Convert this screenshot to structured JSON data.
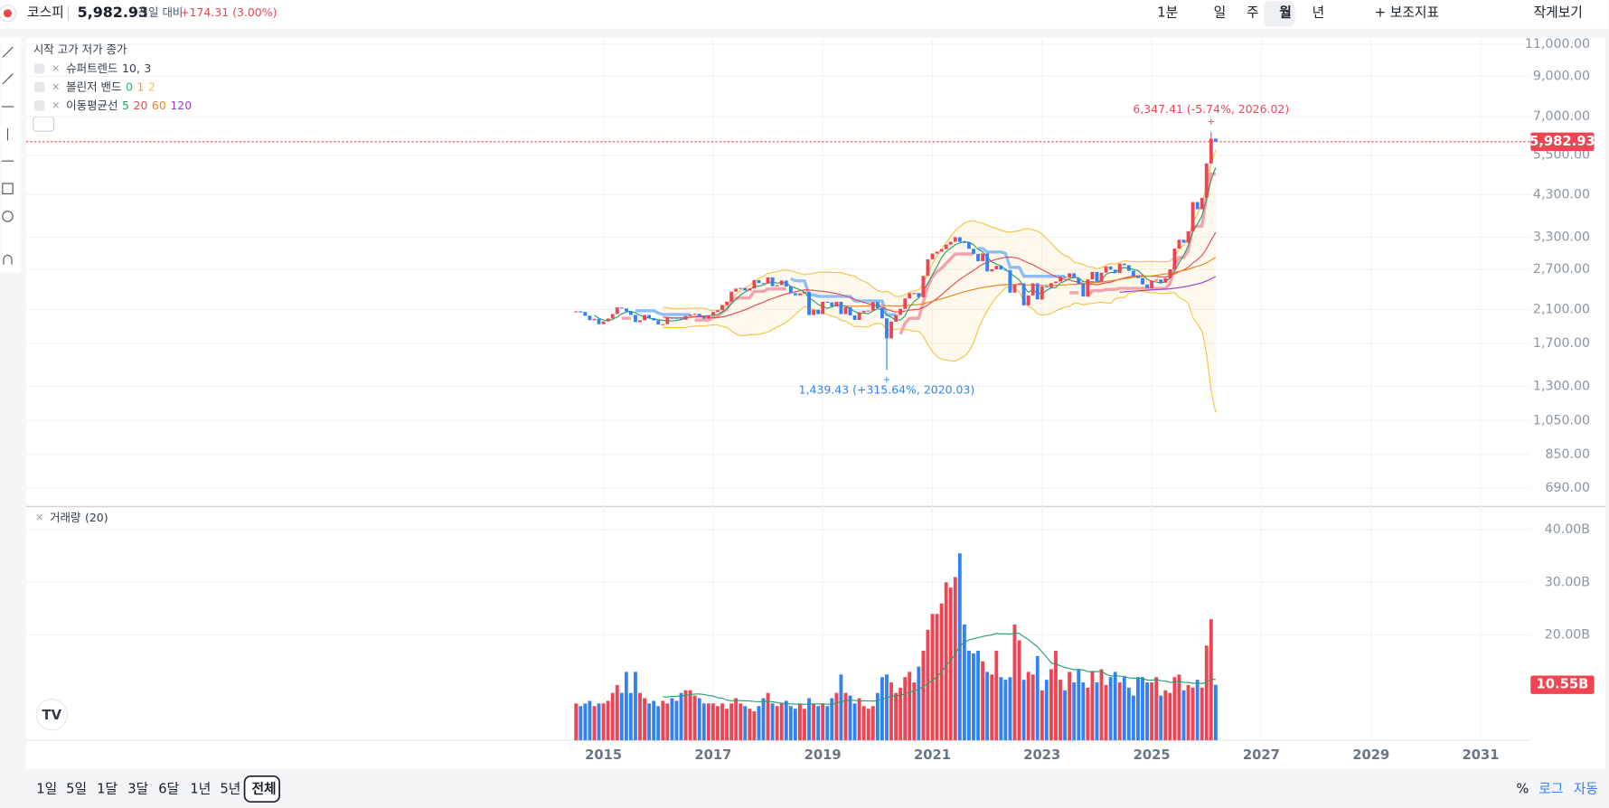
{
  "header": {
    "name": "코스피",
    "price": "5,982.93",
    "change_label": "전일 대비",
    "change": "+174.31 (3.00%)"
  },
  "toolbar": [
    "1분",
    "일",
    "주",
    "월",
    "년",
    "보조지표",
    "작게보기"
  ],
  "ranges": [
    "1일",
    "5일",
    "1달",
    "3달",
    "6달",
    "1년",
    "5년",
    "전체"
  ],
  "scale_options": [
    "%",
    "로그",
    "자동"
  ],
  "chart_data": {
    "type": "candlestick",
    "ohlc_header": "시작 고가 저가 종가",
    "x": [
      "2014.07",
      "2014.08",
      "2014.09",
      "2014.10",
      "2014.11",
      "2014.12",
      "2015.01",
      "2015.02",
      "2015.03",
      "2015.04",
      "2015.05",
      "2015.06",
      "2015.07",
      "2015.08",
      "2015.09",
      "2015.10",
      "2015.11",
      "2015.12",
      "2016.01",
      "2016.02",
      "2016.03",
      "2016.04",
      "2016.05",
      "2016.06",
      "2016.07",
      "2016.08",
      "2016.09",
      "2016.10",
      "2016.11",
      "2016.12",
      "2017.01",
      "2017.02",
      "2017.03",
      "2017.04",
      "2017.05",
      "2017.06",
      "2017.07",
      "2017.08",
      "2017.09",
      "2017.10",
      "2017.11",
      "2017.12",
      "2018.01",
      "2018.02",
      "2018.03",
      "2018.04",
      "2018.05",
      "2018.06",
      "2018.07",
      "2018.08",
      "2018.09",
      "2018.10",
      "2018.11",
      "2018.12",
      "2019.01",
      "2019.02",
      "2019.03",
      "2019.04",
      "2019.05",
      "2019.06",
      "2019.07",
      "2019.08",
      "2019.09",
      "2019.10",
      "2019.11",
      "2019.12",
      "2020.01",
      "2020.02",
      "2020.03",
      "2020.04",
      "2020.05",
      "2020.06",
      "2020.07",
      "2020.08",
      "2020.09",
      "2020.10",
      "2020.11",
      "2020.12",
      "2021.01",
      "2021.02",
      "2021.03",
      "2021.04",
      "2021.05",
      "2021.06",
      "2021.07",
      "2021.08",
      "2021.09",
      "2021.10",
      "2021.11",
      "2021.12",
      "2022.01",
      "2022.02",
      "2022.03",
      "2022.04",
      "2022.05",
      "2022.06",
      "2022.07",
      "2022.08",
      "2022.09",
      "2022.10",
      "2022.11",
      "2022.12",
      "2023.01",
      "2023.02",
      "2023.03",
      "2023.04",
      "2023.05",
      "2023.06",
      "2023.07",
      "2023.08",
      "2023.09",
      "2023.10",
      "2023.11",
      "2023.12",
      "2024.01",
      "2024.02",
      "2024.03",
      "2024.04",
      "2024.05",
      "2024.06",
      "2024.07",
      "2024.08",
      "2024.09",
      "2024.10",
      "2024.11",
      "2024.12",
      "2025.01",
      "2025.02",
      "2025.03",
      "2025.04",
      "2025.05",
      "2025.06",
      "2025.07",
      "2025.08",
      "2025.09",
      "2025.10",
      "2025.11",
      "2025.12",
      "2026.01",
      "2026.02",
      "2026.03"
    ],
    "close": [
      2076,
      2068,
      2020,
      1964,
      1981,
      1916,
      1949,
      1985,
      2041,
      2127,
      2114,
      2074,
      2030,
      1941,
      1963,
      2029,
      1991,
      1961,
      1912,
      1917,
      1995,
      1994,
      1983,
      1970,
      2016,
      2034,
      2043,
      2008,
      1983,
      2026,
      2067,
      2091,
      2160,
      2205,
      2347,
      2392,
      2402,
      2363,
      2394,
      2523,
      2476,
      2467,
      2566,
      2427,
      2445,
      2515,
      2423,
      2326,
      2295,
      2322,
      2343,
      2029,
      2097,
      2041,
      2204,
      2195,
      2141,
      2204,
      2041,
      2131,
      2024,
      1967,
      2063,
      2083,
      2087,
      2198,
      2119,
      1987,
      1754,
      1947,
      2030,
      2108,
      2249,
      2326,
      2327,
      2267,
      2591,
      2873,
      2976,
      3013,
      3061,
      3147,
      3204,
      3297,
      3202,
      3199,
      3068,
      2970,
      2839,
      2977,
      2663,
      2699,
      2757,
      2695,
      2685,
      2332,
      2451,
      2472,
      2155,
      2293,
      2472,
      2236,
      2425,
      2412,
      2476,
      2501,
      2577,
      2564,
      2632,
      2556,
      2465,
      2277,
      2535,
      2655,
      2497,
      2642,
      2747,
      2692,
      2636,
      2797,
      2770,
      2674,
      2593,
      2556,
      2455,
      2399,
      2517,
      2532,
      2481,
      2556,
      2697,
      3071,
      3245,
      3186,
      3424,
      4107,
      3926,
      4214,
      5224,
      6100,
      5982.93
    ],
    "volume": [
      7,
      6.5,
      7,
      7.5,
      6.5,
      7,
      7,
      7.5,
      9,
      10.5,
      9,
      13,
      9,
      13,
      9,
      8,
      7,
      7.5,
      6.5,
      7.5,
      7,
      8,
      7.5,
      9,
      9.5,
      9.5,
      8.5,
      8,
      7,
      7,
      7,
      6.5,
      7,
      6,
      7,
      8,
      7,
      6.5,
      6,
      5.5,
      6.5,
      8,
      9,
      7,
      6.5,
      7,
      7.5,
      6.5,
      6,
      7,
      6,
      8,
      7,
      6.5,
      7,
      6.5,
      8,
      9,
      12.5,
      9,
      8.5,
      7,
      8,
      6.5,
      6,
      6.5,
      9,
      12,
      12.5,
      11,
      9,
      10,
      12,
      13,
      11,
      14,
      17,
      21,
      24,
      24,
      26,
      30,
      29,
      31,
      35.5,
      22,
      17,
      16.5,
      17,
      15,
      13,
      12.5,
      17,
      12,
      11.5,
      12,
      22,
      19,
      11.5,
      13,
      12.5,
      16,
      9.5,
      11.5,
      13.5,
      17,
      11.5,
      9.5,
      13,
      11,
      13.5,
      11,
      10,
      13,
      11,
      13.5,
      10.5,
      12,
      13,
      11,
      12,
      10,
      8.5,
      12,
      12,
      11,
      11,
      12,
      8.5,
      9.5,
      9,
      12,
      12.5,
      9.5,
      10.5,
      10,
      11.5,
      10,
      18,
      23,
      10.55
    ],
    "last_label": "5,982.93",
    "xlim": [
      2004.47,
      2031.91
    ],
    "xticks": [
      2015,
      2017,
      2019,
      2021,
      2023,
      2025,
      2027,
      2029,
      2031
    ],
    "ylim": [
      618,
      11360
    ],
    "log_scale": true,
    "grid": true,
    "yticks": [
      {
        "value": 690,
        "label": "690.00"
      },
      {
        "value": 850,
        "label": "850.00"
      },
      {
        "value": 1050,
        "label": "1,050.00"
      },
      {
        "value": 1300,
        "label": "1,300.00"
      },
      {
        "value": 1700,
        "label": "1,700.00"
      },
      {
        "value": 2100,
        "label": "2,100.00"
      },
      {
        "value": 2700,
        "label": "2,700.00"
      },
      {
        "value": 3300,
        "label": "3,300.00"
      },
      {
        "value": 4300,
        "label": "4,300.00"
      },
      {
        "value": 5500,
        "label": "5,500.00"
      },
      {
        "value": 7000,
        "label": "7,000.00"
      },
      {
        "value": 9000,
        "label": "9,000.00"
      },
      {
        "value": 11000,
        "label": "11,000.00"
      }
    ],
    "up_color": "#f04452",
    "down_color": "#3182f6",
    "indicators": {
      "supertrend": {
        "name": "슈퍼트렌드",
        "params": [
          10,
          3
        ],
        "up_color": "#f5a3ab",
        "down_color": "#8fbdf7"
      },
      "bollinger": {
        "name": "볼린저 밴드",
        "labels": [
          0,
          1,
          2
        ],
        "colors": [
          "#22b573",
          "#f59a23",
          "#f5c242"
        ]
      },
      "moving_average": {
        "name": "이동평균선",
        "periods": [
          5,
          20,
          60,
          120
        ],
        "colors": [
          "#22a06b",
          "#e5484d",
          "#f0801a",
          "#9b3fcf"
        ]
      }
    },
    "annotations": [
      {
        "label": "6,347.41 (-5.74%, 2026.02)",
        "value": 6347.41,
        "x": "2026.02",
        "color": "#f04452"
      },
      {
        "label": "1,439.43 (+315.64%, 2020.03)",
        "value": 1439.43,
        "x": "2020.03",
        "color": "#3182f6"
      }
    ],
    "volume_pane": {
      "name": "거래량",
      "ma_period": 20,
      "ma_color": "#22a06b",
      "ylim": [
        0,
        44.2
      ],
      "yticks": [
        {
          "value": 20,
          "label": "20.00B"
        },
        {
          "value": 30,
          "label": "30.00B"
        },
        {
          "value": 40,
          "label": "40.00B"
        }
      ],
      "last_label": "10.55B"
    }
  }
}
